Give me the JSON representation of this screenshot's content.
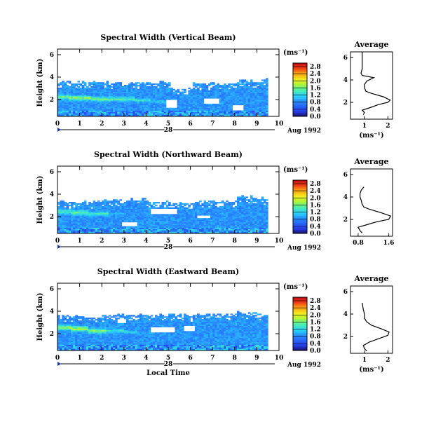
{
  "chart_data": [
    {
      "type": "heatmap",
      "title": "Spectral Width (Vertical Beam)",
      "ylabel": "Height (km)",
      "ylim": [
        0.5,
        6.5
      ],
      "yticks": [
        "2",
        "4",
        "6"
      ],
      "xlim": [
        0,
        10
      ],
      "xticks": [
        "0",
        "1",
        "2",
        "3",
        "4",
        "5",
        "6",
        "7",
        "8",
        "9",
        "10"
      ],
      "day_label": "28",
      "date_label": "Aug 1992",
      "colorbar": {
        "unit": "(ms⁻¹)",
        "ticks": [
          "2.8",
          "2.4",
          "2.0",
          "1.6",
          "1.2",
          "0.8",
          "0.4",
          "0.0"
        ],
        "range": [
          0,
          3.0
        ]
      },
      "features": {
        "coverage": [
          [
            0.0,
            1.0,
            3.5
          ],
          [
            1.0,
            2.0,
            3.5
          ],
          [
            2.0,
            3.0,
            3.5
          ],
          [
            3.0,
            4.0,
            3.4
          ],
          [
            4.0,
            5.0,
            3.5
          ],
          [
            5.0,
            6.0,
            2.9
          ],
          [
            6.0,
            7.0,
            3.4
          ],
          [
            7.0,
            8.0,
            3.4
          ],
          [
            8.0,
            9.0,
            3.6
          ],
          [
            9.0,
            9.4,
            3.7
          ]
        ],
        "high_band": [
          [
            0.0,
            2.2,
            0.55
          ],
          [
            0.5,
            2.1,
            0.6
          ],
          [
            1.5,
            2.0,
            0.55
          ],
          [
            2.5,
            2.0,
            0.5
          ],
          [
            3.5,
            1.9,
            0.45
          ],
          [
            4.2,
            1.8,
            0.4
          ],
          [
            4.8,
            1.8,
            0.2
          ]
        ],
        "gaps": [
          [
            4.8,
            5.3,
            1.2,
            1.9
          ],
          [
            6.5,
            7.2,
            1.6,
            2.0
          ],
          [
            7.8,
            8.3,
            1.0,
            1.4
          ],
          [
            2.9,
            3.2,
            3.3,
            3.6
          ]
        ]
      },
      "avg_profile": {
        "title": "Average",
        "xlabel": "(ms⁻¹)",
        "xticks": [
          "1",
          "2"
        ],
        "xlim": [
          0.4,
          2.2
        ],
        "yticks": [
          "2",
          "4",
          "6"
        ],
        "x": [
          0.95,
          1.0,
          0.9,
          1.2,
          1.6,
          2.0,
          2.1,
          1.8,
          1.3,
          1.05,
          1.0,
          1.0,
          1.1,
          1.4,
          0.9,
          0.85,
          0.9,
          0.9,
          0.9,
          0.9
        ],
        "y": [
          0.9,
          1.1,
          1.3,
          1.5,
          1.8,
          2.0,
          2.2,
          2.5,
          2.8,
          3.0,
          3.3,
          3.6,
          3.9,
          4.2,
          4.4,
          4.6,
          5.0,
          5.5,
          6.0,
          6.5
        ]
      }
    },
    {
      "type": "heatmap",
      "title": "Spectral Width (Northward Beam)",
      "ylabel": "Height (km)",
      "ylim": [
        0.5,
        6.5
      ],
      "yticks": [
        "2",
        "4",
        "6"
      ],
      "xlim": [
        0,
        10
      ],
      "xticks": [
        "0",
        "1",
        "2",
        "3",
        "4",
        "5",
        "6",
        "7",
        "8",
        "9",
        "10"
      ],
      "day_label": "28",
      "date_label": "Aug 1992",
      "colorbar": {
        "unit": "(ms⁻¹)",
        "ticks": [
          "2.8",
          "2.4",
          "2.0",
          "1.6",
          "1.2",
          "0.8",
          "0.4",
          "0.0"
        ],
        "range": [
          0,
          3.0
        ]
      },
      "features": {
        "coverage": [
          [
            0.0,
            1.0,
            3.2
          ],
          [
            1.0,
            2.0,
            3.3
          ],
          [
            2.0,
            3.0,
            3.4
          ],
          [
            3.0,
            4.0,
            3.5
          ],
          [
            4.0,
            5.0,
            3.3
          ],
          [
            5.0,
            6.0,
            3.2
          ],
          [
            6.0,
            7.0,
            3.3
          ],
          [
            7.0,
            8.0,
            3.3
          ],
          [
            8.0,
            9.0,
            3.7
          ],
          [
            9.0,
            9.4,
            3.6
          ]
        ],
        "high_band": [
          [
            0.0,
            2.4,
            0.5
          ],
          [
            0.6,
            2.3,
            0.55
          ],
          [
            1.4,
            2.2,
            0.5
          ],
          [
            2.3,
            2.2,
            0.35
          ],
          [
            3.0,
            2.3,
            0.2
          ],
          [
            3.8,
            2.2,
            0.25
          ],
          [
            5.2,
            2.4,
            0.2
          ]
        ],
        "gaps": [
          [
            4.2,
            5.3,
            2.2,
            2.7
          ],
          [
            2.9,
            3.6,
            1.1,
            1.5
          ],
          [
            6.2,
            6.8,
            1.8,
            2.1
          ]
        ]
      },
      "avg_profile": {
        "title": "Average",
        "xlabel": "",
        "xticks": [
          "0.8",
          "1.6"
        ],
        "xlim": [
          0.6,
          1.7
        ],
        "yticks": [
          "2",
          "4",
          "6"
        ],
        "x": [
          0.9,
          0.85,
          0.8,
          1.0,
          1.3,
          1.6,
          1.65,
          1.4,
          1.1,
          0.95,
          0.9,
          0.88,
          0.85,
          0.85,
          0.88,
          0.95
        ],
        "y": [
          0.8,
          1.0,
          1.3,
          1.5,
          1.8,
          2.0,
          2.3,
          2.6,
          2.9,
          3.1,
          3.4,
          3.7,
          4.0,
          4.3,
          4.6,
          4.9
        ]
      }
    },
    {
      "type": "heatmap",
      "title": "Spectral Width (Eastward Beam)",
      "ylabel": "Height (km)",
      "ylim": [
        0.5,
        6.5
      ],
      "yticks": [
        "2",
        "4",
        "6"
      ],
      "xlim": [
        0,
        10
      ],
      "xticks": [
        "0",
        "1",
        "2",
        "3",
        "4",
        "5",
        "6",
        "7",
        "8",
        "9",
        "10"
      ],
      "day_label": "28",
      "date_label": "Aug 1992",
      "xlabel": "Local Time",
      "colorbar": {
        "unit": "(ms⁻¹)",
        "ticks": [
          "2.8",
          "2.4",
          "2.0",
          "1.6",
          "1.2",
          "0.8",
          "0.4",
          "0.0"
        ],
        "range": [
          0,
          3.0
        ]
      },
      "features": {
        "coverage": [
          [
            0.0,
            1.0,
            3.6
          ],
          [
            1.0,
            2.0,
            3.4
          ],
          [
            2.0,
            3.0,
            3.6
          ],
          [
            3.0,
            4.0,
            3.6
          ],
          [
            4.0,
            5.0,
            3.6
          ],
          [
            5.0,
            6.0,
            3.6
          ],
          [
            6.0,
            7.0,
            3.7
          ],
          [
            7.0,
            8.0,
            3.7
          ],
          [
            8.0,
            9.0,
            3.8
          ],
          [
            9.0,
            9.4,
            3.6
          ]
        ],
        "high_band": [
          [
            0.0,
            2.5,
            0.6
          ],
          [
            0.6,
            2.4,
            0.65
          ],
          [
            1.4,
            2.2,
            0.6
          ],
          [
            2.2,
            2.2,
            0.45
          ],
          [
            3.0,
            2.1,
            0.4
          ],
          [
            3.6,
            2.0,
            0.3
          ]
        ],
        "gaps": [
          [
            4.2,
            5.2,
            2.0,
            2.5
          ],
          [
            5.6,
            6.1,
            2.2,
            2.6
          ],
          [
            2.7,
            3.1,
            2.9,
            3.3
          ]
        ]
      },
      "avg_profile": {
        "title": "Average",
        "xlabel": "(ms⁻¹)",
        "xticks": [
          "1",
          "2"
        ],
        "xlim": [
          0.4,
          2.2
        ],
        "yticks": [
          "2",
          "4",
          "6"
        ],
        "x": [
          1.1,
          1.0,
          0.95,
          1.2,
          1.6,
          2.0,
          2.05,
          1.7,
          1.3,
          1.1,
          1.0,
          1.0,
          0.95,
          0.9
        ],
        "y": [
          0.7,
          0.9,
          1.2,
          1.5,
          1.8,
          2.1,
          2.4,
          2.7,
          3.0,
          3.3,
          3.6,
          4.0,
          4.4,
          5.0
        ]
      }
    }
  ]
}
